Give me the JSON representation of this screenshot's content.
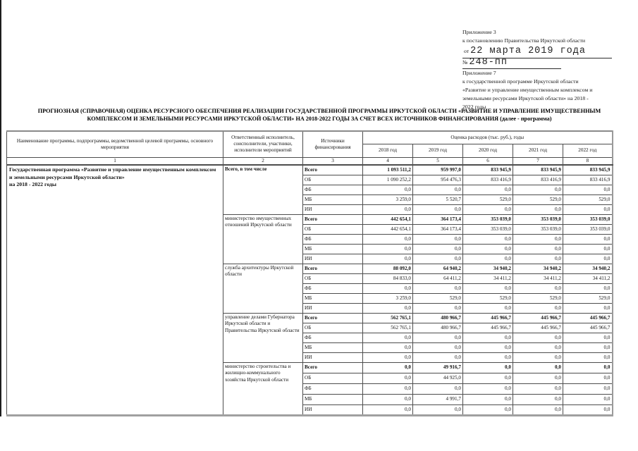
{
  "header_block": {
    "lines_top": [
      "Приложение 3",
      "к постановлению Правительства Иркутской области"
    ],
    "date_prefix": "от",
    "date_value": "22 марта 2019 года",
    "number_prefix": "№",
    "number_value": "248-пп",
    "lines_bottom": [
      "Приложение 7",
      "к государственной программе Иркутской области",
      "«Развитие и управление имущественным комплексом и",
      "земельными ресурсами Иркутской области» на 2018 -",
      "2022 годы"
    ]
  },
  "title": "ПРОГНОЗНАЯ (СПРАВОЧНАЯ) ОЦЕНКА РЕСУРСНОГО ОБЕСПЕЧЕНИЯ РЕАЛИЗАЦИИ ГОСУДАРСТВЕННОЙ ПРОГРАММЫ ИРКУТСКОЙ ОБЛАСТИ «РАЗВИТИЕ И УПРАВЛЕНИЕ ИМУЩЕСТВЕННЫМ КОМПЛЕКСОМ И ЗЕМЕЛЬНЫМИ РЕСУРСАМИ ИРКУТСКОЙ ОБЛАСТИ» НА 2018-2022 ГОДЫ ЗА СЧЕТ ВСЕХ ИСТОЧНИКОВ ФИНАНСИРОВАНИЯ (далее - программа)",
  "table": {
    "headers": {
      "col1": "Наименование программы, подпрограммы, ведомственной целевой программы, основного мероприятия",
      "col2": "Ответственный исполнитель, соисполнители, участники, исполнители мероприятий",
      "col3": "Источники финансирования",
      "expenses": "Оценка расходов (тыс. руб.), годы",
      "years": [
        "2018 год",
        "2019 год",
        "2020 год",
        "2021 год",
        "2022 год"
      ],
      "numbering": [
        "1",
        "2",
        "3",
        "4",
        "5",
        "6",
        "7",
        "8"
      ]
    },
    "program_name": "Государственная программа «Развитие и управление имущественным комплексом и земельными ресурсами Иркутской области»\nна 2018 - 2022 годы",
    "blocks": [
      {
        "executor": "Всего, в том числе",
        "bold": true,
        "rows": [
          {
            "source": "Всего",
            "bold": true,
            "values": [
              "1 093 511,2",
              "959 997,0",
              "833 945,9",
              "833 945,9",
              "833 945,9"
            ]
          },
          {
            "source": "ОБ",
            "bold": false,
            "values": [
              "1 090 252,2",
              "954 476,3",
              "833 416,9",
              "833 416,9",
              "833 416,9"
            ]
          },
          {
            "source": "ФБ",
            "bold": false,
            "values": [
              "0,0",
              "0,0",
              "0,0",
              "0,0",
              "0,0"
            ]
          },
          {
            "source": "МБ",
            "bold": false,
            "values": [
              "3 259,0",
              "5 520,7",
              "529,0",
              "529,0",
              "529,0"
            ]
          },
          {
            "source": "ИИ",
            "bold": false,
            "values": [
              "0,0",
              "0,0",
              "0,0",
              "0,0",
              "0,0"
            ]
          }
        ]
      },
      {
        "executor": "министерство имущественных отношений Иркутской области",
        "bold": false,
        "rows": [
          {
            "source": "Всего",
            "bold": true,
            "values": [
              "442 654,1",
              "364 173,4",
              "353 039,0",
              "353 039,0",
              "353 039,0"
            ]
          },
          {
            "source": "ОБ",
            "bold": false,
            "values": [
              "442 654,1",
              "364 173,4",
              "353 039,0",
              "353 039,0",
              "353 039,0"
            ]
          },
          {
            "source": "ФБ",
            "bold": false,
            "values": [
              "0,0",
              "0,0",
              "0,0",
              "0,0",
              "0,0"
            ]
          },
          {
            "source": "МБ",
            "bold": false,
            "values": [
              "0,0",
              "0,0",
              "0,0",
              "0,0",
              "0,0"
            ]
          },
          {
            "source": "ИИ",
            "bold": false,
            "values": [
              "0,0",
              "0,0",
              "0,0",
              "0,0",
              "0,0"
            ]
          }
        ]
      },
      {
        "executor": "служба архитектуры Иркутской области",
        "bold": false,
        "rows": [
          {
            "source": "Всего",
            "bold": true,
            "values": [
              "88 092,0",
              "64 940,2",
              "34 940,2",
              "34 940,2",
              "34 940,2"
            ]
          },
          {
            "source": "ОБ",
            "bold": false,
            "values": [
              "84 833,0",
              "64 411,2",
              "34 411,2",
              "34 411,2",
              "34 411,2"
            ]
          },
          {
            "source": "ФБ",
            "bold": false,
            "values": [
              "0,0",
              "0,0",
              "0,0",
              "0,0",
              "0,0"
            ]
          },
          {
            "source": "МБ",
            "bold": false,
            "values": [
              "3 259,0",
              "529,0",
              "529,0",
              "529,0",
              "529,0"
            ]
          },
          {
            "source": "ИИ",
            "bold": false,
            "values": [
              "0,0",
              "0,0",
              "0,0",
              "0,0",
              "0,0"
            ]
          }
        ]
      },
      {
        "executor": "управление делами Губернатора Иркутской области и Правительства Иркутской области",
        "bold": false,
        "rows": [
          {
            "source": "Всего",
            "bold": true,
            "values": [
              "562 765,1",
              "480 966,7",
              "445 966,7",
              "445 966,7",
              "445 966,7"
            ]
          },
          {
            "source": "ОБ",
            "bold": false,
            "values": [
              "562 765,1",
              "480 966,7",
              "445 966,7",
              "445 966,7",
              "445 966,7"
            ]
          },
          {
            "source": "ФБ",
            "bold": false,
            "values": [
              "0,0",
              "0,0",
              "0,0",
              "0,0",
              "0,0"
            ]
          },
          {
            "source": "МБ",
            "bold": false,
            "values": [
              "0,0",
              "0,0",
              "0,0",
              "0,0",
              "0,0"
            ]
          },
          {
            "source": "ИИ",
            "bold": false,
            "values": [
              "0,0",
              "0,0",
              "0,0",
              "0,0",
              "0,0"
            ]
          }
        ]
      },
      {
        "executor": "министерство строительства и жилищно-коммунального хозяйства Иркутской области",
        "bold": false,
        "rows": [
          {
            "source": "Всего",
            "bold": true,
            "values": [
              "0,0",
              "49 916,7",
              "0,0",
              "0,0",
              "0,0"
            ]
          },
          {
            "source": "ОБ",
            "bold": false,
            "values": [
              "0,0",
              "44 925,0",
              "0,0",
              "0,0",
              "0,0"
            ]
          },
          {
            "source": "ФБ",
            "bold": false,
            "values": [
              "0,0",
              "0,0",
              "0,0",
              "0,0",
              "0,0"
            ]
          },
          {
            "source": "МБ",
            "bold": false,
            "values": [
              "0,0",
              "4 991,7",
              "0,0",
              "0,0",
              "0,0"
            ]
          },
          {
            "source": "ИИ",
            "bold": false,
            "values": [
              "0,0",
              "0,0",
              "0,0",
              "0,0",
              "0,0"
            ]
          }
        ]
      }
    ]
  }
}
